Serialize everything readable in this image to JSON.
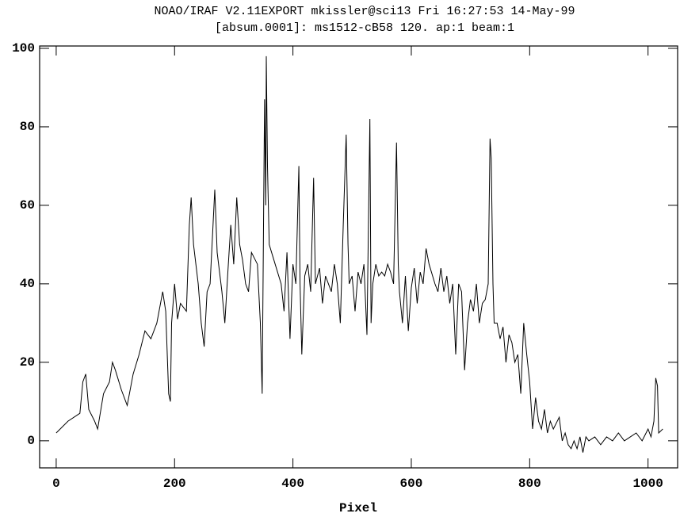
{
  "chart_data": {
    "type": "line",
    "title": "NOAO/IRAF V2.11EXPORT mkissler@sci13 Fri 16:27:53 14-May-99",
    "subtitle": "[absum.0001]: ms1512-cB58 120. ap:1 beam:1",
    "x_label": "Pixel",
    "color": "#000000",
    "xlim": [
      -28,
      1050
    ],
    "ylim": [
      -6.9,
      100.6
    ],
    "xticks": [
      0,
      200,
      400,
      600,
      800,
      1000
    ],
    "yticks": [
      0,
      20,
      40,
      60,
      80,
      100
    ],
    "x": [
      0,
      20,
      40,
      45,
      50,
      55,
      65,
      70,
      80,
      90,
      95,
      100,
      110,
      120,
      130,
      140,
      150,
      160,
      170,
      180,
      185,
      190,
      193,
      195,
      200,
      205,
      210,
      220,
      225,
      228,
      232,
      240,
      245,
      250,
      255,
      260,
      265,
      268,
      272,
      280,
      285,
      290,
      295,
      300,
      305,
      310,
      315,
      320,
      325,
      330,
      340,
      345,
      348,
      350,
      352,
      354,
      355,
      357,
      360,
      370,
      380,
      385,
      390,
      395,
      400,
      405,
      410,
      412,
      415,
      420,
      425,
      430,
      435,
      438,
      445,
      450,
      455,
      460,
      465,
      470,
      475,
      480,
      485,
      490,
      493,
      495,
      500,
      505,
      510,
      515,
      520,
      525,
      530,
      532,
      535,
      540,
      545,
      550,
      555,
      560,
      565,
      570,
      575,
      578,
      580,
      585,
      590,
      595,
      600,
      605,
      610,
      615,
      620,
      625,
      630,
      640,
      645,
      650,
      655,
      660,
      665,
      670,
      675,
      680,
      685,
      690,
      695,
      700,
      705,
      710,
      715,
      720,
      725,
      730,
      733,
      735,
      738,
      740,
      745,
      750,
      755,
      760,
      765,
      770,
      775,
      780,
      785,
      790,
      795,
      800,
      805,
      810,
      815,
      820,
      825,
      830,
      835,
      840,
      850,
      855,
      860,
      865,
      870,
      875,
      880,
      885,
      890,
      895,
      900,
      910,
      920,
      930,
      940,
      950,
      960,
      970,
      980,
      990,
      1000,
      1005,
      1010,
      1013,
      1016,
      1018,
      1025
    ],
    "values": [
      2,
      5,
      7,
      15,
      17,
      8,
      5,
      3,
      12,
      15,
      20,
      18,
      13,
      9,
      17,
      22,
      28,
      26,
      30,
      38,
      33,
      12,
      10,
      30,
      40,
      31,
      35,
      33,
      55,
      62,
      50,
      40,
      30,
      24,
      38,
      40,
      55,
      64,
      48,
      38,
      30,
      43,
      55,
      45,
      62,
      50,
      46,
      40,
      38,
      48,
      45,
      30,
      12,
      50,
      87,
      60,
      98,
      70,
      50,
      45,
      40,
      33,
      48,
      26,
      45,
      40,
      70,
      40,
      22,
      42,
      45,
      38,
      67,
      40,
      44,
      35,
      42,
      40,
      38,
      45,
      40,
      30,
      55,
      78,
      50,
      40,
      42,
      33,
      43,
      40,
      45,
      27,
      82,
      30,
      40,
      45,
      42,
      43,
      42,
      45,
      43,
      40,
      76,
      45,
      38,
      30,
      42,
      28,
      39,
      44,
      35,
      43,
      40,
      49,
      45,
      40,
      38,
      44,
      38,
      42,
      35,
      40,
      22,
      40,
      38,
      18,
      30,
      36,
      33,
      40,
      30,
      35,
      36,
      40,
      77,
      72,
      40,
      30,
      30,
      26,
      29,
      20,
      27,
      25,
      20,
      22,
      12,
      30,
      22,
      15,
      3,
      11,
      5,
      3,
      8,
      2,
      5,
      3,
      6,
      0,
      2,
      -1,
      -2,
      0,
      -2,
      1,
      -3,
      1,
      0,
      1,
      -1,
      1,
      0,
      2,
      0,
      1,
      2,
      0,
      3,
      1,
      5,
      16,
      14,
      2,
      3
    ]
  }
}
